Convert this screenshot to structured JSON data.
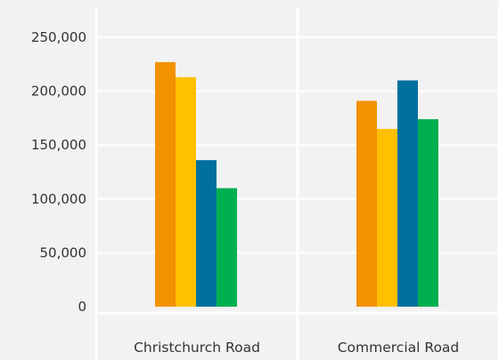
{
  "chart_data": {
    "type": "bar",
    "categories": [
      "Christchurch Road",
      "Commercial Road"
    ],
    "series": [
      {
        "color": "#f39200",
        "values": [
          227000,
          191000
        ]
      },
      {
        "color": "#ffc000",
        "values": [
          213000,
          165000
        ]
      },
      {
        "color": "#00709f",
        "values": [
          136000,
          210000
        ]
      },
      {
        "color": "#00b050",
        "values": [
          110000,
          174000
        ]
      }
    ],
    "ylim": [
      0,
      250000
    ],
    "yticks": [
      0,
      50000,
      100000,
      150000,
      200000,
      250000
    ],
    "ytick_labels": [
      "0",
      "50,000",
      "100,000",
      "150,000",
      "200,000",
      "250,000"
    ],
    "grid": true,
    "legend": "none"
  }
}
